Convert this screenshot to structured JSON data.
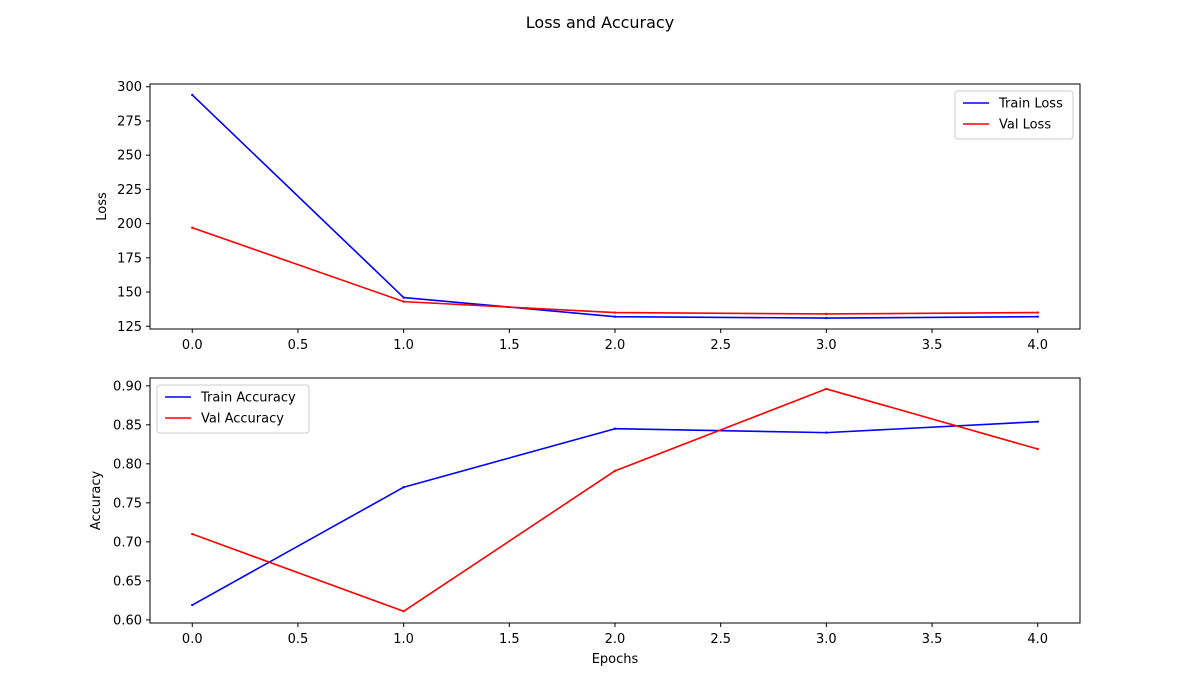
{
  "figure": {
    "title": "Loss and Accuracy"
  },
  "chart_data": [
    {
      "type": "line",
      "title": "",
      "xlabel": "",
      "ylabel": "Loss",
      "x": [
        0,
        1,
        2,
        3,
        4
      ],
      "xlim": [
        -0.2,
        4.2
      ],
      "ylim": [
        123,
        302
      ],
      "xticks": [
        "0.0",
        "0.5",
        "1.0",
        "1.5",
        "2.0",
        "2.5",
        "3.0",
        "3.5",
        "4.0"
      ],
      "yticks": [
        "125",
        "150",
        "175",
        "200",
        "225",
        "250",
        "275",
        "300"
      ],
      "legend": "top-right",
      "grid": false,
      "series": [
        {
          "name": "Train Loss",
          "color": "#0000ff",
          "values": [
            294,
            146,
            132,
            131,
            132
          ]
        },
        {
          "name": "Val Loss",
          "color": "#ff0000",
          "values": [
            197,
            143,
            135,
            134,
            135
          ]
        }
      ]
    },
    {
      "type": "line",
      "title": "",
      "xlabel": "Epochs",
      "ylabel": "Accuracy",
      "x": [
        0,
        1,
        2,
        3,
        4
      ],
      "xlim": [
        -0.2,
        4.2
      ],
      "ylim": [
        0.596,
        0.91
      ],
      "xticks": [
        "0.0",
        "0.5",
        "1.0",
        "1.5",
        "2.0",
        "2.5",
        "3.0",
        "3.5",
        "4.0"
      ],
      "yticks": [
        "0.60",
        "0.65",
        "0.70",
        "0.75",
        "0.80",
        "0.85",
        "0.90"
      ],
      "legend": "top-left",
      "grid": false,
      "series": [
        {
          "name": "Train Accuracy",
          "color": "#0000ff",
          "values": [
            0.619,
            0.77,
            0.845,
            0.84,
            0.854
          ]
        },
        {
          "name": "Val Accuracy",
          "color": "#ff0000",
          "values": [
            0.71,
            0.611,
            0.791,
            0.896,
            0.819
          ]
        }
      ]
    }
  ]
}
